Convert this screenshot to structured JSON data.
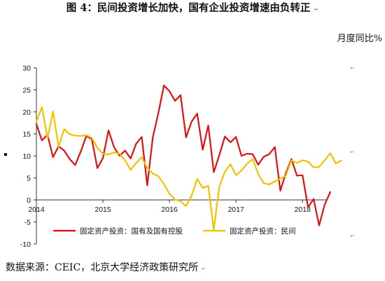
{
  "title": "图 4：民间投资增长加快，国有企业投资增速由负转正",
  "unit": "月度同比%",
  "source": "数据来源：CEIC，北京大学经济政策研究所",
  "paragraph_mark": "↵",
  "chart_data": {
    "type": "line",
    "ylim": [
      -10,
      30
    ],
    "yticks": [
      "30",
      "25",
      "20",
      "15",
      "10",
      "5",
      "0",
      "-5",
      "-10"
    ],
    "x_start": "2014-01",
    "year_labels": [
      "2014",
      "2015",
      "2016",
      "2017",
      "2018"
    ],
    "legend_position": "bottom",
    "grid": false,
    "series": [
      {
        "name": "固定资产投资：国有及国有控股",
        "color": "#e01010",
        "values": [
          17.2,
          13.5,
          14.8,
          9.7,
          12.2,
          11.2,
          9.3,
          7.9,
          11.0,
          14.5,
          13.8,
          7.2,
          9.5,
          15.8,
          12.0,
          10.0,
          11.2,
          9.4,
          12.8,
          14.3,
          3.3,
          14.2,
          19.7,
          26.0,
          24.7,
          22.5,
          23.8,
          14.2,
          17.8,
          19.6,
          11.4,
          16.9,
          6.3,
          10.2,
          14.4,
          13.1,
          14.3,
          10.0,
          10.5,
          10.4,
          8.0,
          9.8,
          10.4,
          12.0,
          2.1,
          6.1,
          9.3,
          5.5,
          5.6,
          -1.7,
          0.2,
          -5.8,
          -1.1,
          1.8
        ]
      },
      {
        "name": "固定资产投资：民间",
        "color": "#f2c200",
        "values": [
          17.8,
          21.1,
          14.0,
          20.1,
          12.0,
          16.1,
          14.9,
          14.6,
          14.5,
          14.7,
          14.1,
          11.8,
          10.5,
          10.3,
          10.8,
          10.5,
          9.0,
          6.8,
          8.4,
          9.7,
          7.2,
          6.0,
          5.4,
          3.6,
          1.4,
          0.1,
          -0.3,
          -1.4,
          1.0,
          4.8,
          2.7,
          3.2,
          -6.8,
          3.1,
          6.4,
          8.1,
          5.6,
          6.7,
          8.2,
          9.3,
          5.9,
          3.8,
          3.5,
          4.2,
          4.8,
          5.5,
          9.0,
          8.4,
          9.0,
          8.7,
          7.4,
          7.5,
          9.0,
          10.6,
          8.3,
          8.9
        ]
      }
    ]
  }
}
